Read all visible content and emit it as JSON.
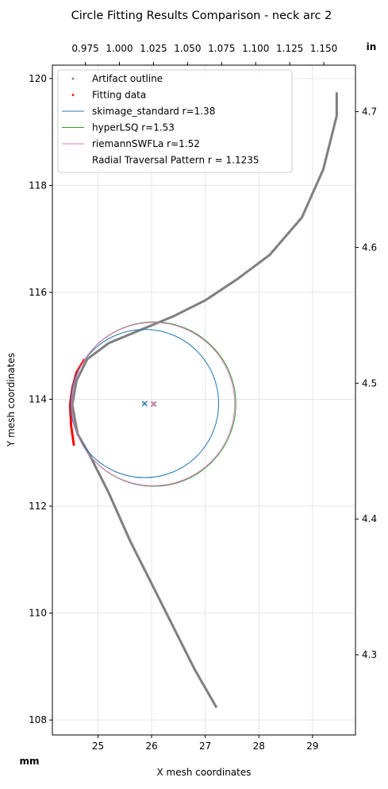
{
  "chart_data": {
    "type": "scatter",
    "title": "Circle Fitting Results Comparison - neck arc 2",
    "xlabel": "X mesh coordinates",
    "ylabel": "Y mesh coordinates",
    "xlim": [
      24.15,
      29.8
    ],
    "ylim": [
      107.72,
      120.25
    ],
    "x_ticks": [
      25,
      26,
      27,
      28,
      29
    ],
    "y_ticks": [
      108,
      110,
      112,
      114,
      116,
      118,
      120
    ],
    "secondary_x_ticks": [
      "0.975",
      "1.000",
      "1.025",
      "1.050",
      "1.075",
      "1.100",
      "1.125",
      "1.150"
    ],
    "secondary_y_ticks": [
      "4.3",
      "4.4",
      "4.5",
      "4.6",
      "4.7"
    ],
    "unit_left": "mm",
    "unit_right": "in",
    "grid": true,
    "legend_position": "upper-left",
    "colors": {
      "outline": "#808080",
      "fitting": "#ff0000",
      "skimage": "#1f77b4",
      "hyper": "#2ca02c",
      "riemann": "#e377c2"
    },
    "series": [
      {
        "name": "Artifact outline",
        "kind": "points",
        "path": [
          [
            27.2,
            108.25
          ],
          [
            26.8,
            108.95
          ],
          [
            26.4,
            109.75
          ],
          [
            26.0,
            110.55
          ],
          [
            25.6,
            111.35
          ],
          [
            25.2,
            112.25
          ],
          [
            24.85,
            112.95
          ],
          [
            24.62,
            113.35
          ],
          [
            24.52,
            113.9
          ],
          [
            24.6,
            114.35
          ],
          [
            24.8,
            114.75
          ],
          [
            25.2,
            115.05
          ],
          [
            25.8,
            115.3
          ],
          [
            26.4,
            115.55
          ],
          [
            27.0,
            115.85
          ],
          [
            27.6,
            116.25
          ],
          [
            28.2,
            116.7
          ],
          [
            28.8,
            117.4
          ],
          [
            29.2,
            118.3
          ],
          [
            29.45,
            119.3
          ],
          [
            29.45,
            119.75
          ]
        ]
      },
      {
        "name": "Fitting data",
        "kind": "points",
        "path": [
          [
            24.55,
            113.15
          ],
          [
            24.5,
            113.5
          ],
          [
            24.48,
            113.9
          ],
          [
            24.52,
            114.2
          ],
          [
            24.6,
            114.5
          ],
          [
            24.75,
            114.75
          ]
        ]
      },
      {
        "name": "skimage_standard r=1.38",
        "kind": "circle",
        "center": [
          25.87,
          113.92
        ],
        "r": 1.38
      },
      {
        "name": "hyperLSQ r=1.53",
        "kind": "circle",
        "center": [
          26.04,
          113.91
        ],
        "r": 1.53
      },
      {
        "name": "riemannSWFLa r=1.52",
        "kind": "circle",
        "center": [
          26.03,
          113.91
        ],
        "r": 1.52
      },
      {
        "name": "Radial Traversal Pattern r = 1.1235",
        "kind": "none"
      }
    ]
  }
}
